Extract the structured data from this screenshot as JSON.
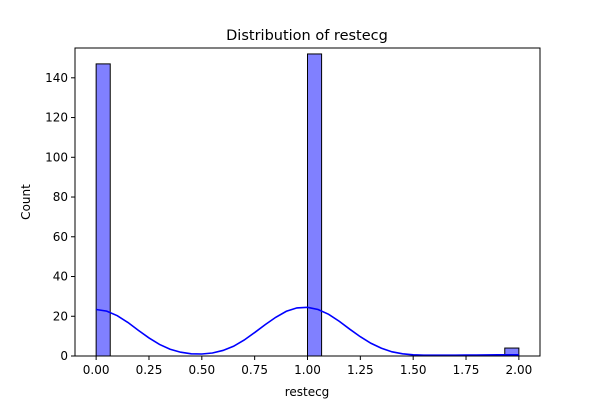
{
  "chart_data": {
    "type": "bar",
    "subtype": "histogram-with-kde",
    "title": "Distribution of restecg",
    "xlabel": "restecg",
    "ylabel": "Count",
    "xlim": [
      -0.1,
      2.1
    ],
    "ylim": [
      0,
      155
    ],
    "xticks": [
      0.0,
      0.25,
      0.5,
      0.75,
      1.0,
      1.25,
      1.5,
      1.75,
      2.0
    ],
    "xtick_labels": [
      "0.00",
      "0.25",
      "0.50",
      "0.75",
      "1.00",
      "1.25",
      "1.50",
      "1.75",
      "2.00"
    ],
    "yticks": [
      0,
      20,
      40,
      60,
      80,
      100,
      120,
      140
    ],
    "ytick_labels": [
      "0",
      "20",
      "40",
      "60",
      "80",
      "100",
      "120",
      "140"
    ],
    "bins": [
      {
        "x_start": 0.0,
        "x_end": 0.0667,
        "count": 147
      },
      {
        "x_start": 1.0,
        "x_end": 1.0667,
        "count": 152
      },
      {
        "x_start": 1.9333,
        "x_end": 2.0,
        "count": 4
      }
    ],
    "bar_color": "#8080ff",
    "bar_edge_color": "#000000",
    "kde": {
      "color": "#0000ff",
      "x": [
        0.0,
        0.05,
        0.1,
        0.15,
        0.2,
        0.25,
        0.3,
        0.35,
        0.4,
        0.45,
        0.5,
        0.55,
        0.6,
        0.65,
        0.7,
        0.75,
        0.8,
        0.85,
        0.9,
        0.95,
        1.0,
        1.05,
        1.1,
        1.15,
        1.2,
        1.25,
        1.3,
        1.35,
        1.4,
        1.45,
        1.5,
        1.55,
        1.6,
        1.65,
        1.7,
        1.75,
        1.8,
        1.85,
        1.9,
        1.95,
        2.0
      ],
      "y": [
        23.4,
        22.6,
        20.3,
        16.9,
        12.9,
        9.1,
        5.8,
        3.4,
        1.9,
        1.1,
        1.0,
        1.5,
        2.8,
        4.9,
        8.0,
        11.8,
        15.8,
        19.5,
        22.5,
        24.2,
        24.5,
        23.4,
        21.0,
        17.5,
        13.5,
        9.7,
        6.4,
        3.9,
        2.1,
        1.1,
        0.6,
        0.4,
        0.4,
        0.4,
        0.4,
        0.45,
        0.5,
        0.55,
        0.6,
        0.6,
        0.6
      ]
    },
    "grid": false,
    "legend": "none"
  }
}
